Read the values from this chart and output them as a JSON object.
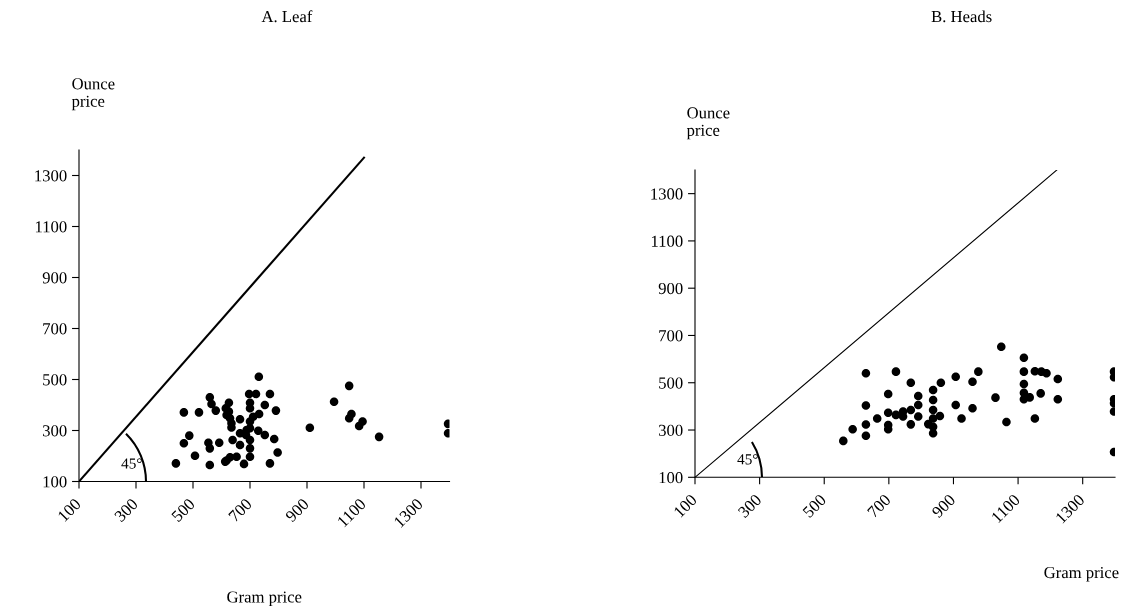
{
  "chart_data": [
    {
      "type": "scatter",
      "title": "A. Leaf",
      "xlabel": "Gram price",
      "ylabel": "Ounce\nprice",
      "annotations": [
        {
          "text": "45°",
          "x": 100,
          "y": 100
        }
      ],
      "xlim": [
        100,
        1400
      ],
      "ylim": [
        100,
        1400
      ],
      "xticks": [
        100,
        300,
        500,
        700,
        900,
        1100,
        1300
      ],
      "yticks": [
        100,
        300,
        500,
        700,
        900,
        1100,
        1300
      ],
      "grid": false,
      "legend": false,
      "marker": "circle",
      "series": [
        {
          "color": "#000000",
          "x": [
            731,
            559,
            697,
            721,
            770,
            626,
            565,
            700,
            752,
            995,
            1048,
            468,
            521,
            580,
            615,
            626,
            700,
            732,
            791,
            1056,
            1048,
            1095,
            1083,
            630,
            665,
            635,
            700,
            700,
            910,
            1395,
            1395,
            1153,
            487,
            468,
            554,
            592,
            639,
            665,
            686,
            729,
            752,
            785,
            559,
            665,
            700,
            700,
            700,
            507,
            797,
            440,
            559,
            613,
            630,
            653,
            679,
            770,
            618,
            618,
            635,
            688,
            711
          ],
          "values": [
            511,
            430,
            443,
            443,
            443,
            409,
            404,
            409,
            400,
            413,
            475,
            371,
            371,
            378,
            387,
            374,
            387,
            365,
            378,
            365,
            348,
            335,
            318,
            348,
            344,
            312,
            335,
            309,
            311,
            326,
            289,
            275,
            280,
            250,
            252,
            252,
            263,
            289,
            282,
            299,
            282,
            267,
            230,
            243,
            263,
            230,
            197,
            201,
            214,
            171,
            165,
            178,
            195,
            197,
            169,
            171,
            182,
            361,
            328,
            302,
            354
          ]
        },
        {
          "type": "line",
          "color": "#000000",
          "marker": "none",
          "line_style": "solid",
          "x": [
            100,
            1100
          ],
          "values": [
            100,
            1370
          ]
        }
      ]
    },
    {
      "type": "scatter",
      "title": "B. Heads",
      "xlabel": "Gram price",
      "ylabel": "Ounce\nprice",
      "annotations": [
        {
          "text": "45°",
          "x": 100,
          "y": 100
        }
      ],
      "xlim": [
        100,
        1400
      ],
      "ylim": [
        100,
        1400
      ],
      "xticks": [
        100,
        300,
        500,
        700,
        900,
        1100,
        1300
      ],
      "yticks": [
        100,
        300,
        500,
        700,
        900,
        1100,
        1300
      ],
      "grid": false,
      "legend": false,
      "marker": "circle",
      "series": [
        {
          "color": "#000000",
          "x": [
            559,
            588,
            629,
            629,
            629,
            629,
            664,
            698,
            698,
            698,
            698,
            722,
            722,
            744,
            744,
            768,
            768,
            768,
            791,
            791,
            791,
            837,
            837,
            837,
            837,
            837,
            837,
            822,
            858,
            861,
            907,
            907,
            925,
            959,
            959,
            1048,
            1118,
            1118,
            1152,
            1172,
            1188,
            1223,
            1118,
            1118,
            1118,
            1136,
            1170,
            1223,
            1030,
            1064,
            1152,
            977,
            1397,
            1397,
            1397,
            1397,
            1397,
            1397
          ],
          "values": [
            254,
            303,
            540,
            404,
            323,
            276,
            349,
            452,
            373,
            321,
            303,
            547,
            364,
            378,
            357,
            500,
            324,
            385,
            444,
            406,
            357,
            469,
            427,
            385,
            349,
            314,
            286,
            325,
            359,
            500,
            525,
            406,
            349,
            504,
            392,
            652,
            606,
            547,
            549,
            547,
            540,
            516,
            495,
            458,
            430,
            438,
            455,
            430,
            437,
            334,
            349,
            547,
            547,
            523,
            430,
            413,
            378,
            207
          ]
        },
        {
          "type": "line",
          "color": "#000000",
          "marker": "none",
          "line_style": "solid",
          "x": [
            100,
            1220
          ],
          "values": [
            100,
            1400
          ]
        }
      ]
    }
  ]
}
